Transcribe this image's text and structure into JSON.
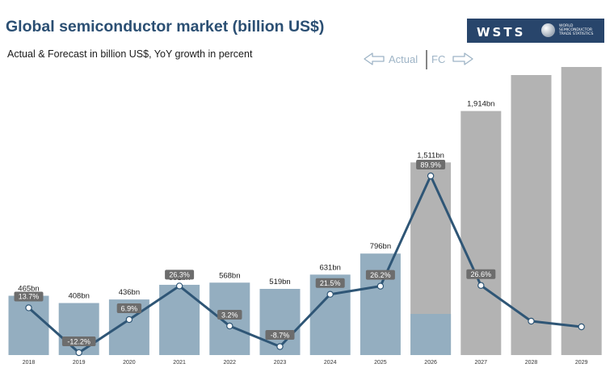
{
  "header": {
    "title": "Global semiconductor market (billion US$)",
    "subtitle": "Actual & Forecast in billion US$, YoY growth in percent"
  },
  "logo": {
    "mark": "WSTS",
    "lines": [
      "WORLD",
      "SEMICONDUCTOR",
      "TRADE STATISTICS"
    ]
  },
  "colors": {
    "actual_bar": "#94aec0",
    "forecast_bar": "#b3b3b3",
    "line": "#2f5676",
    "label_box": "#6d6d6d",
    "arrow": "#9eb4c6",
    "title": "#2b4f73"
  },
  "chart_data": {
    "type": "bar",
    "categories": [
      "2018",
      "2019",
      "2020",
      "2021",
      "2022",
      "2023",
      "2024",
      "2025",
      "2026",
      "2027",
      "2028",
      "2029"
    ],
    "values": [
      465,
      408,
      436,
      551,
      568,
      519,
      631,
      796,
      1511,
      1914,
      null,
      null
    ],
    "value_labels": [
      "465bn",
      "408bn",
      "436bn",
      "551bn",
      "568bn",
      "519bn",
      "631bn",
      "796bn",
      "1,511bn",
      "1,914bn",
      "",
      ""
    ],
    "forecast_from_index": 8,
    "growth": {
      "values": [
        13.7,
        -12.2,
        6.9,
        26.3,
        3.2,
        -8.7,
        21.5,
        26.2,
        89.9,
        26.6,
        null,
        null
      ],
      "labels": [
        "13.7%",
        "-12.2%",
        "6.9%",
        "26.3%",
        "3.2%",
        "-8.7%",
        "21.5%",
        "26.2%",
        "89.9%",
        "26.6%",
        "",
        ""
      ]
    },
    "divider": {
      "left": "Actual",
      "right": "FC"
    },
    "ylim": [
      0,
      2000
    ]
  }
}
